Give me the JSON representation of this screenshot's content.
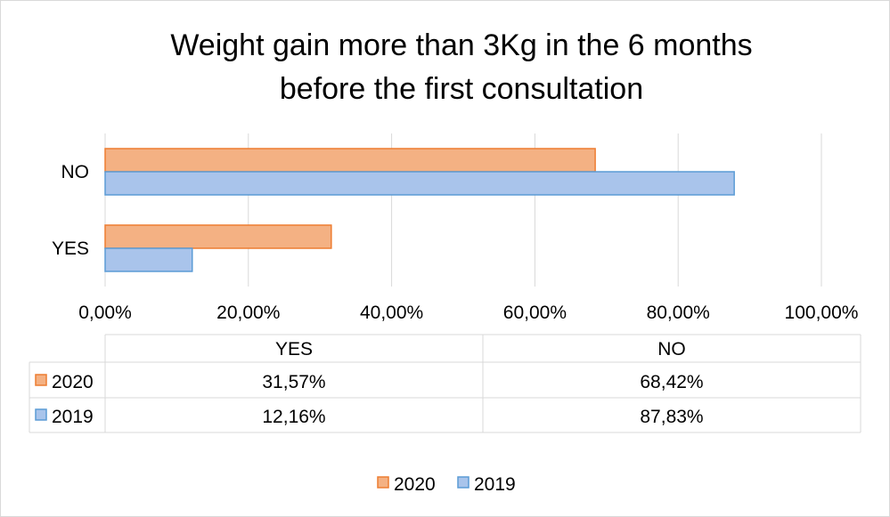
{
  "colors": {
    "2020_fill": "#f4b183",
    "2020_stroke": "#ed7d31",
    "2019_fill": "#a9c4eb",
    "2019_stroke": "#5b9bd5",
    "grid": "#d9d9d9",
    "table_border": "#d9d9d9"
  },
  "chart_data": {
    "type": "bar",
    "orientation": "horizontal",
    "title": [
      "Weight gain more than 3Kg in the 6 months",
      "before the first consultation"
    ],
    "categories": [
      "NO",
      "YES"
    ],
    "series": [
      {
        "name": "2020",
        "values": [
          68.42,
          31.57
        ]
      },
      {
        "name": "2019",
        "values": [
          87.83,
          12.16
        ]
      }
    ],
    "xlim": [
      0,
      100
    ],
    "x_ticks": [
      "0,00%",
      "20,00%",
      "40,00%",
      "60,00%",
      "80,00%",
      "100,00%"
    ],
    "grid": true,
    "legend_position": "bottom",
    "data_table": {
      "columns": [
        "YES",
        "NO"
      ],
      "rows": [
        {
          "series": "2020",
          "cells": [
            "31,57%",
            "68,42%"
          ]
        },
        {
          "series": "2019",
          "cells": [
            "12,16%",
            "87,83%"
          ]
        }
      ]
    }
  }
}
